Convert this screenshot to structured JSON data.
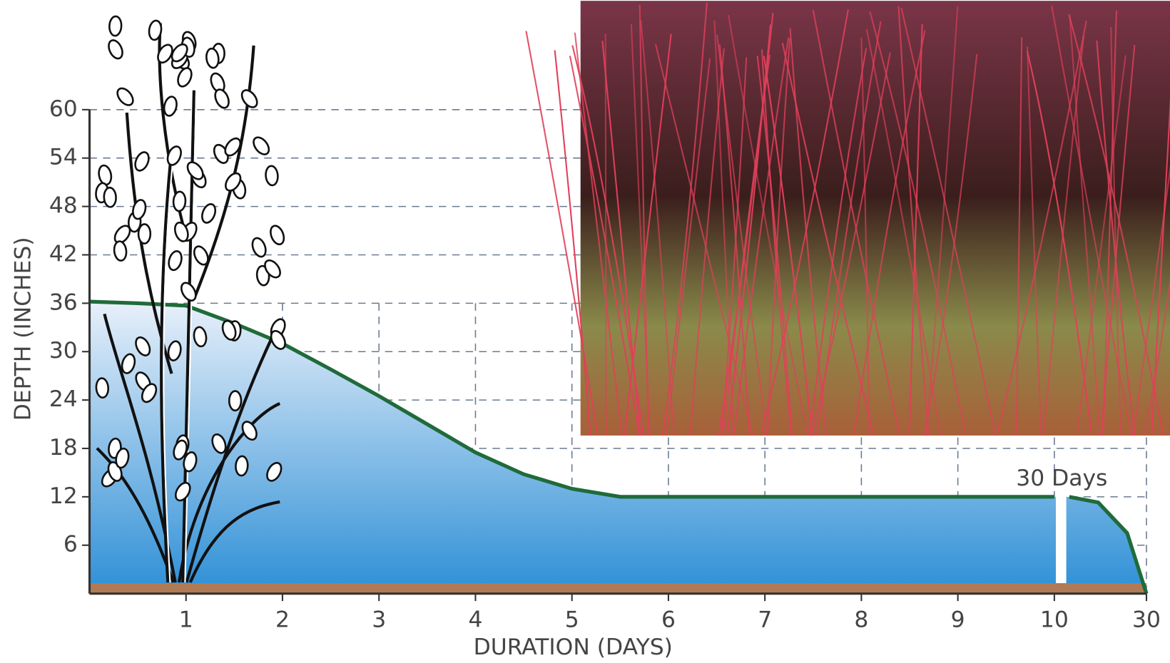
{
  "chart_data": {
    "type": "area",
    "x_label": "DURATION (DAYS)",
    "y_label": "DEPTH (INCHES)",
    "annotation": "30 Days",
    "x": [
      0,
      0.5,
      1,
      1.5,
      2,
      2.5,
      3,
      3.5,
      4,
      4.5,
      5,
      5.5,
      6,
      7,
      8,
      9,
      10,
      20,
      29.2,
      29.5,
      29.8,
      30
    ],
    "series": [
      {
        "color": "#1f6b3a",
        "values": [
          36.2,
          36,
          35.7,
          33.5,
          31,
          27.8,
          24.5,
          21,
          17.5,
          14.8,
          13,
          12,
          12,
          12,
          12,
          12,
          12,
          null,
          12,
          11.3,
          7.5,
          0
        ]
      }
    ],
    "xlim": [
      0,
      30
    ],
    "axis_break": [
      10,
      29.2
    ],
    "xticks": [
      1,
      2,
      3,
      4,
      5,
      6,
      7,
      8,
      9,
      10,
      30
    ],
    "ylim": [
      0,
      60
    ],
    "yticks": [
      6,
      12,
      18,
      24,
      30,
      36,
      42,
      48,
      54,
      60
    ],
    "grid": true
  }
}
